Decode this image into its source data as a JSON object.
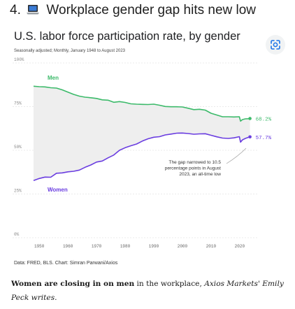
{
  "headline": {
    "number": "4.",
    "icon": "laptop-icon",
    "text": "Workplace gender gap hits new low"
  },
  "chart_data": {
    "type": "line",
    "title": "U.S. labor force participation rate, by gender",
    "subtitle": "Seasonally adjusted; Monthly, January 1948 to August 2023",
    "xlim": [
      1948,
      2023.7
    ],
    "ylim": [
      0,
      100
    ],
    "x_ticks": [
      "1950",
      "1960",
      "1970",
      "1980",
      "1990",
      "2000",
      "2010",
      "2020"
    ],
    "y_ticks": [
      "100%",
      "75%",
      "50%",
      "25%",
      "0%"
    ],
    "grid": true,
    "series": [
      {
        "name": "Men",
        "color": "#3cba6a",
        "end_label": "68.2%",
        "points": [
          [
            1948,
            86.7
          ],
          [
            1950,
            86.4
          ],
          [
            1952,
            86.3
          ],
          [
            1954,
            85.8
          ],
          [
            1956,
            85.6
          ],
          [
            1958,
            84.6
          ],
          [
            1960,
            83.3
          ],
          [
            1962,
            82.0
          ],
          [
            1964,
            81.0
          ],
          [
            1966,
            80.4
          ],
          [
            1968,
            80.1
          ],
          [
            1970,
            79.7
          ],
          [
            1972,
            78.9
          ],
          [
            1974,
            78.7
          ],
          [
            1976,
            77.5
          ],
          [
            1978,
            77.9
          ],
          [
            1980,
            77.4
          ],
          [
            1982,
            76.6
          ],
          [
            1984,
            76.4
          ],
          [
            1986,
            76.3
          ],
          [
            1988,
            76.2
          ],
          [
            1990,
            76.4
          ],
          [
            1992,
            75.8
          ],
          [
            1994,
            75.1
          ],
          [
            1996,
            74.9
          ],
          [
            1998,
            74.9
          ],
          [
            2000,
            74.8
          ],
          [
            2002,
            74.1
          ],
          [
            2004,
            73.3
          ],
          [
            2006,
            73.5
          ],
          [
            2008,
            73.0
          ],
          [
            2010,
            71.2
          ],
          [
            2012,
            70.2
          ],
          [
            2014,
            69.2
          ],
          [
            2016,
            69.2
          ],
          [
            2018,
            69.1
          ],
          [
            2019.9,
            69.2
          ],
          [
            2020.3,
            66.7
          ],
          [
            2021,
            67.6
          ],
          [
            2022,
            68.0
          ],
          [
            2023,
            68.1
          ],
          [
            2023.6,
            68.2
          ]
        ]
      },
      {
        "name": "Women",
        "color": "#6a3de0",
        "end_label": "57.7%",
        "points": [
          [
            1948,
            32.7
          ],
          [
            1950,
            33.9
          ],
          [
            1952,
            34.7
          ],
          [
            1954,
            34.6
          ],
          [
            1956,
            36.9
          ],
          [
            1958,
            37.1
          ],
          [
            1960,
            37.7
          ],
          [
            1962,
            38.0
          ],
          [
            1964,
            38.7
          ],
          [
            1966,
            40.3
          ],
          [
            1968,
            41.6
          ],
          [
            1970,
            43.3
          ],
          [
            1972,
            43.9
          ],
          [
            1974,
            45.7
          ],
          [
            1976,
            47.3
          ],
          [
            1978,
            50.0
          ],
          [
            1980,
            51.5
          ],
          [
            1982,
            52.6
          ],
          [
            1984,
            53.6
          ],
          [
            1986,
            55.3
          ],
          [
            1988,
            56.6
          ],
          [
            1990,
            57.5
          ],
          [
            1992,
            57.8
          ],
          [
            1994,
            58.8
          ],
          [
            1996,
            59.3
          ],
          [
            1998,
            59.8
          ],
          [
            2000,
            59.9
          ],
          [
            2002,
            59.6
          ],
          [
            2004,
            59.2
          ],
          [
            2006,
            59.4
          ],
          [
            2008,
            59.5
          ],
          [
            2010,
            58.6
          ],
          [
            2012,
            57.7
          ],
          [
            2014,
            57.0
          ],
          [
            2016,
            56.8
          ],
          [
            2018,
            57.1
          ],
          [
            2019.9,
            57.8
          ],
          [
            2020.3,
            54.7
          ],
          [
            2021,
            56.0
          ],
          [
            2022,
            56.8
          ],
          [
            2023,
            57.4
          ],
          [
            2023.6,
            57.7
          ]
        ]
      }
    ],
    "annotations": {
      "men_label": "Men",
      "women_label": "Women",
      "gap_note": [
        "The gap narrowed to 10.5",
        "percentage points in August",
        "2023, an all-time low"
      ]
    }
  },
  "source": "Data: FRED, BLS. Chart: Simran Parwani/Axios",
  "lens_icon": "lens-scan-icon",
  "caption": {
    "bold": "Women are closing in on men",
    "plain": " in the workplace, ",
    "italic": "Axios Markets' Emily Peck writes."
  }
}
